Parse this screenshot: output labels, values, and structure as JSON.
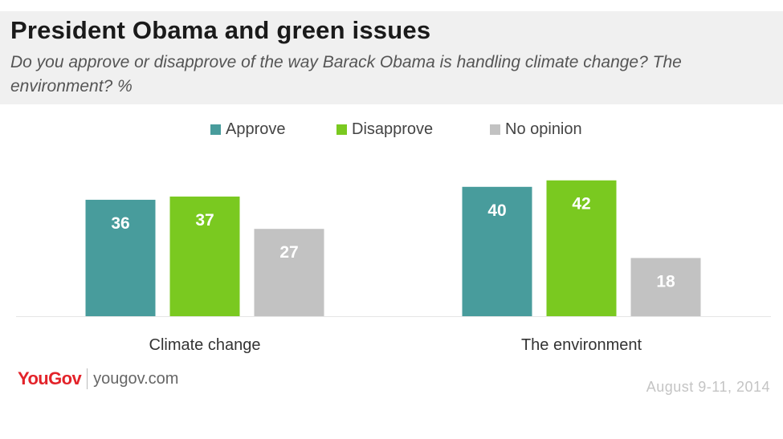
{
  "header": {
    "title": "President Obama and green issues",
    "subtitle": "Do you approve or disapprove of the way Barack Obama is handling climate change? The environment? %"
  },
  "legend": {
    "items": [
      {
        "label": "Approve",
        "color": "#489c9c"
      },
      {
        "label": "Disapprove",
        "color": "#7ac920"
      },
      {
        "label": "No opinion",
        "color": "#c2c2c2"
      }
    ]
  },
  "chart_data": {
    "type": "bar",
    "title": "President Obama and green issues",
    "subtitle": "Do you approve or disapprove of the way Barack Obama is handling climate change? The environment? %",
    "categories": [
      "Climate change",
      "The environment"
    ],
    "series": [
      {
        "name": "Approve",
        "color": "#489c9c",
        "values": [
          36,
          40
        ]
      },
      {
        "name": "Disapprove",
        "color": "#7ac920",
        "values": [
          37,
          42
        ]
      },
      {
        "name": "No opinion",
        "color": "#c2c2c2",
        "values": [
          27,
          18
        ]
      }
    ],
    "ylim": [
      0,
      45
    ],
    "grid": false,
    "legend_position": "top-center",
    "data_labels": true
  },
  "footer": {
    "brand": "YouGov",
    "url": "yougov.com",
    "date": "August 9-11, 2014"
  }
}
